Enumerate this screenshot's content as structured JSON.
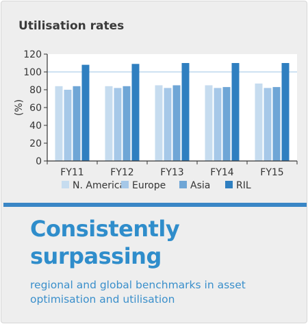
{
  "chart_data": {
    "type": "bar",
    "title": "Utilisation rates",
    "ylabel": "(%)",
    "xlabel": "",
    "ylim": [
      0,
      120
    ],
    "yticks": [
      0,
      20,
      40,
      60,
      80,
      100,
      120
    ],
    "reference_line": 100,
    "grid": false,
    "legend_position": "bottom",
    "categories": [
      "FY11",
      "FY12",
      "FY13",
      "FY14",
      "FY15"
    ],
    "series": [
      {
        "name": "N. America",
        "values": [
          84,
          84,
          85,
          85,
          87
        ],
        "color": "#c6dcef"
      },
      {
        "name": "Europe",
        "values": [
          80,
          82,
          82,
          82,
          82
        ],
        "color": "#a6c8e8"
      },
      {
        "name": "Asia",
        "values": [
          84,
          84,
          85,
          83,
          83
        ],
        "color": "#6fa6d6"
      },
      {
        "name": "RIL",
        "values": [
          108,
          109,
          110,
          110,
          110
        ],
        "color": "#2f7fc0"
      }
    ]
  },
  "headline": "Consistently surpassing",
  "subheadline": "regional and global benchmarks in asset optimisation and utilisation"
}
